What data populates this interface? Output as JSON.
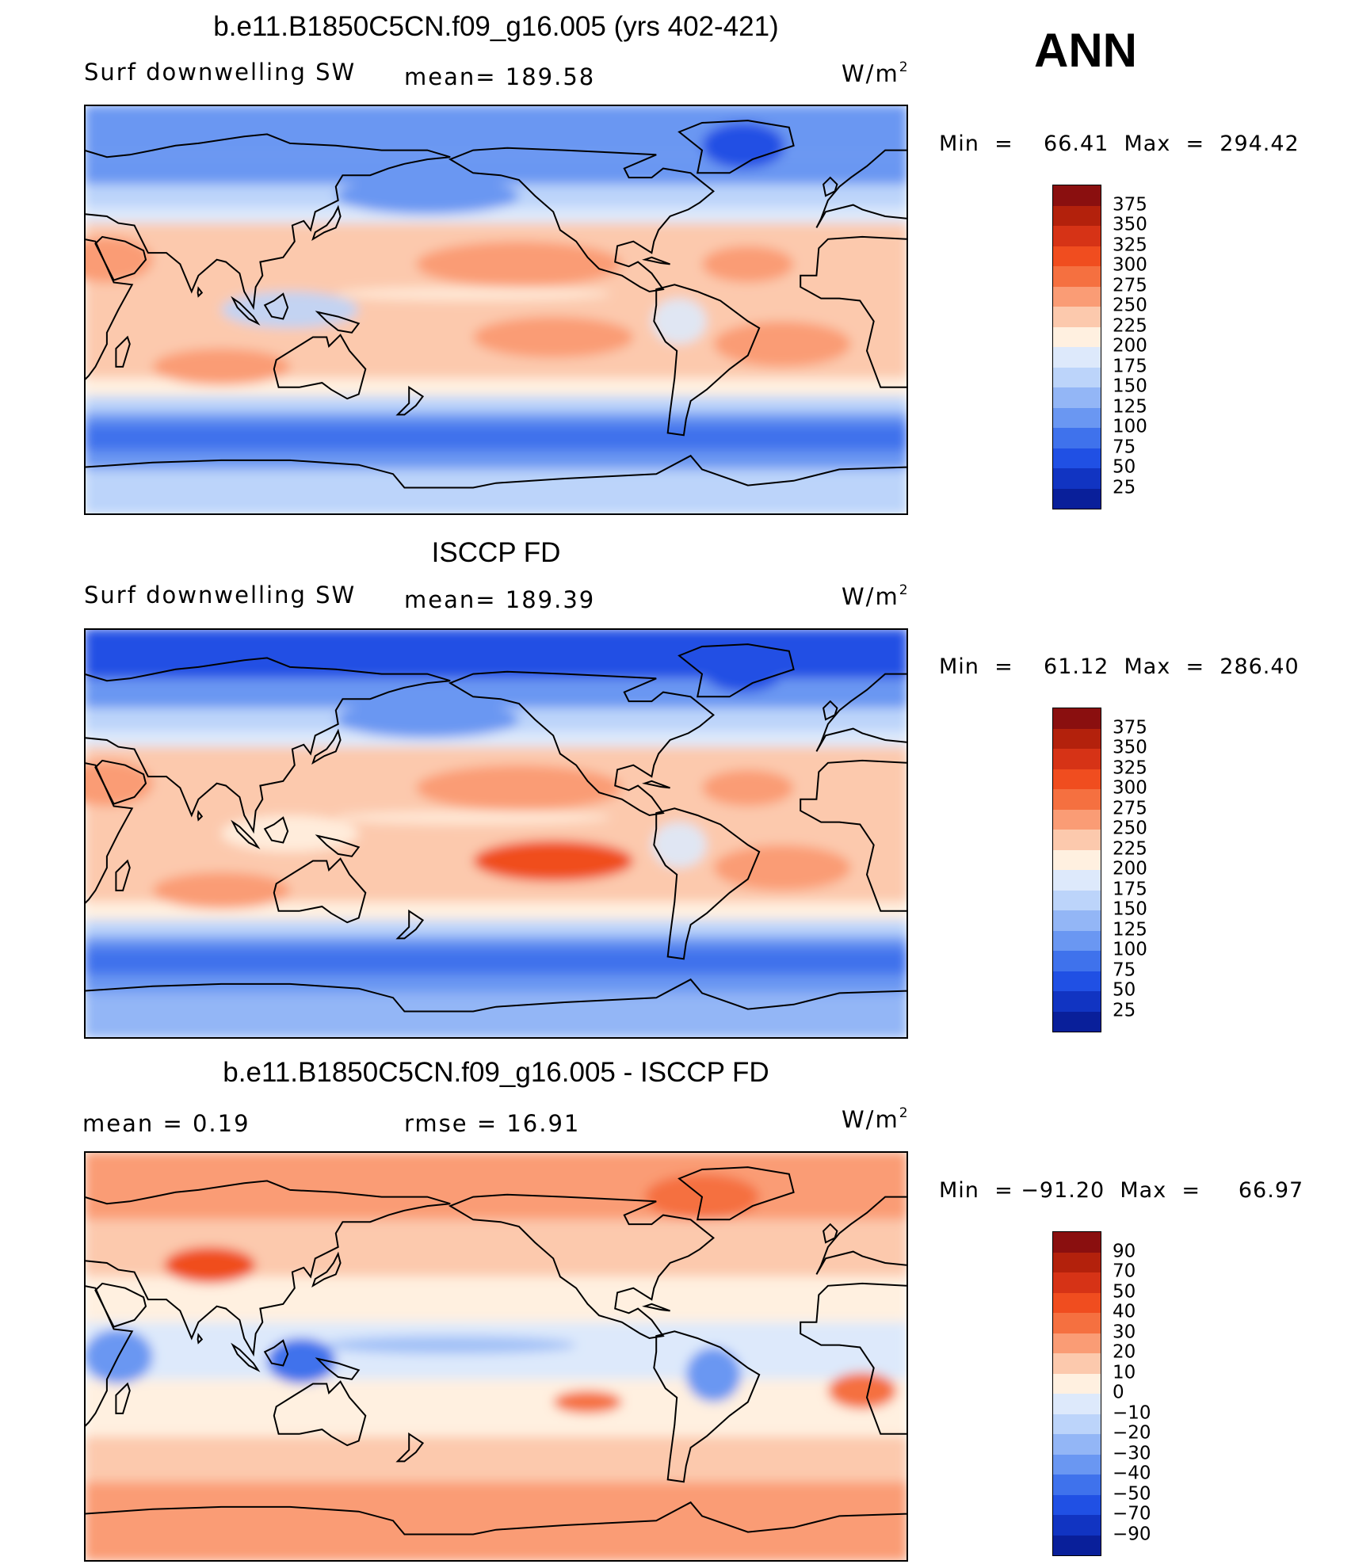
{
  "season": "ANN",
  "panels": [
    {
      "title": "b.e11.B1850C5CN.f09_g16.005 (yrs 402-421)",
      "left_label": "Surf  downwelling  SW",
      "mid_label": "mean=  189.58",
      "units": "W/m",
      "units_sup": "2",
      "stats": "Min  =    66.41  Max  =  294.42",
      "colorbar": {
        "labels": [
          "375",
          "350",
          "325",
          "300",
          "275",
          "250",
          "225",
          "200",
          "175",
          "150",
          "125",
          "100",
          "75",
          "50",
          "25"
        ],
        "colors": [
          "#8a0f0f",
          "#b3210c",
          "#d63316",
          "#f04d1f",
          "#f57040",
          "#fa9c75",
          "#fcc9ad",
          "#fff0e0",
          "#dde9fb",
          "#bcd4fa",
          "#93b6f6",
          "#6a97f2",
          "#3f72ec",
          "#2050e4",
          "#1134c2",
          "#091f9a"
        ]
      },
      "field": "abs"
    },
    {
      "title": "ISCCP FD",
      "left_label": "Surf  downwelling  SW",
      "mid_label": "mean=  189.39",
      "units": "W/m",
      "units_sup": "2",
      "stats": "Min  =    61.12  Max  =  286.40",
      "colorbar": {
        "labels": [
          "375",
          "350",
          "325",
          "300",
          "275",
          "250",
          "225",
          "200",
          "175",
          "150",
          "125",
          "100",
          "75",
          "50",
          "25"
        ],
        "colors": [
          "#8a0f0f",
          "#b3210c",
          "#d63316",
          "#f04d1f",
          "#f57040",
          "#fa9c75",
          "#fcc9ad",
          "#fff0e0",
          "#dde9fb",
          "#bcd4fa",
          "#93b6f6",
          "#6a97f2",
          "#3f72ec",
          "#2050e4",
          "#1134c2",
          "#091f9a"
        ]
      },
      "field": "obs"
    },
    {
      "title": "b.e11.B1850C5CN.f09_g16.005 - ISCCP FD",
      "left_label": "mean  =       0.19",
      "mid_label": "rmse  =      16.91",
      "units": "W/m",
      "units_sup": "2",
      "stats": "Min  = −91.20  Max  =     66.97",
      "colorbar": {
        "labels": [
          "90",
          "70",
          "50",
          "40",
          "30",
          "20",
          "10",
          "0",
          "−10",
          "−20",
          "−30",
          "−40",
          "−50",
          "−70",
          "−90"
        ],
        "colors": [
          "#8a0f0f",
          "#b3210c",
          "#d63316",
          "#f04d1f",
          "#f57040",
          "#fa9c75",
          "#fcc9ad",
          "#fff0e0",
          "#dde9fb",
          "#bcd4fa",
          "#93b6f6",
          "#6a97f2",
          "#3f72ec",
          "#2050e4",
          "#1134c2",
          "#091f9a"
        ]
      },
      "field": "diff"
    }
  ]
}
